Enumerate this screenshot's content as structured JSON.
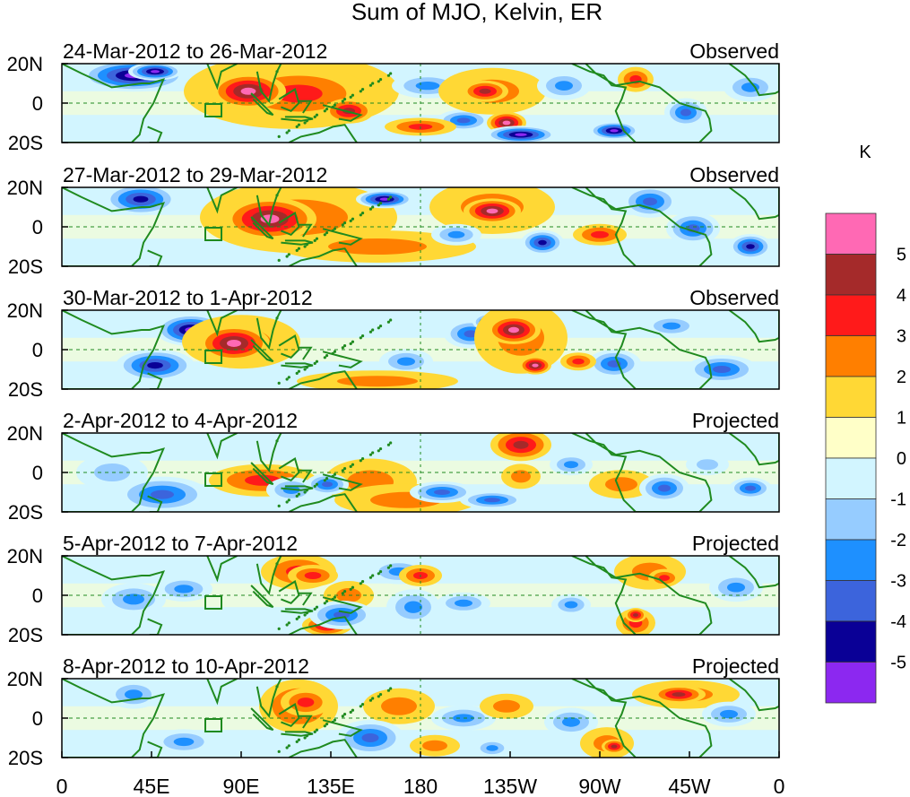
{
  "title": "Sum of MJO, Kelvin, ER",
  "panels": [
    {
      "date_range": "24-Mar-2012 to 26-Mar-2012",
      "status": "Observed"
    },
    {
      "date_range": "27-Mar-2012 to 29-Mar-2012",
      "status": "Observed"
    },
    {
      "date_range": "30-Mar-2012 to 1-Apr-2012",
      "status": "Observed"
    },
    {
      "date_range": "2-Apr-2012 to 4-Apr-2012",
      "status": "Projected"
    },
    {
      "date_range": "5-Apr-2012 to 7-Apr-2012",
      "status": "Projected"
    },
    {
      "date_range": "8-Apr-2012 to 10-Apr-2012",
      "status": "Projected"
    }
  ],
  "lat_labels": [
    "20N",
    "0",
    "20S"
  ],
  "lon_labels": [
    "0",
    "45E",
    "90E",
    "135E",
    "180",
    "135W",
    "90W",
    "45W",
    "0"
  ],
  "colorbar": {
    "unit": "K",
    "labels": [
      "5",
      "4",
      "3",
      "2",
      "1",
      "0",
      "-1",
      "-2",
      "-3",
      "-4",
      "-5"
    ],
    "colors": [
      "#ff69b4",
      "#a52a2a",
      "#ff1a1a",
      "#ff7f00",
      "#ffd835",
      "#ffffc8",
      "#d2f5ff",
      "#96ccff",
      "#1e90ff",
      "#3c64dc",
      "#0a0096",
      "#8c28f0"
    ]
  },
  "map_colors": {
    "coast": "#1f8a1f",
    "equator_line": "#1f8a1f"
  }
}
